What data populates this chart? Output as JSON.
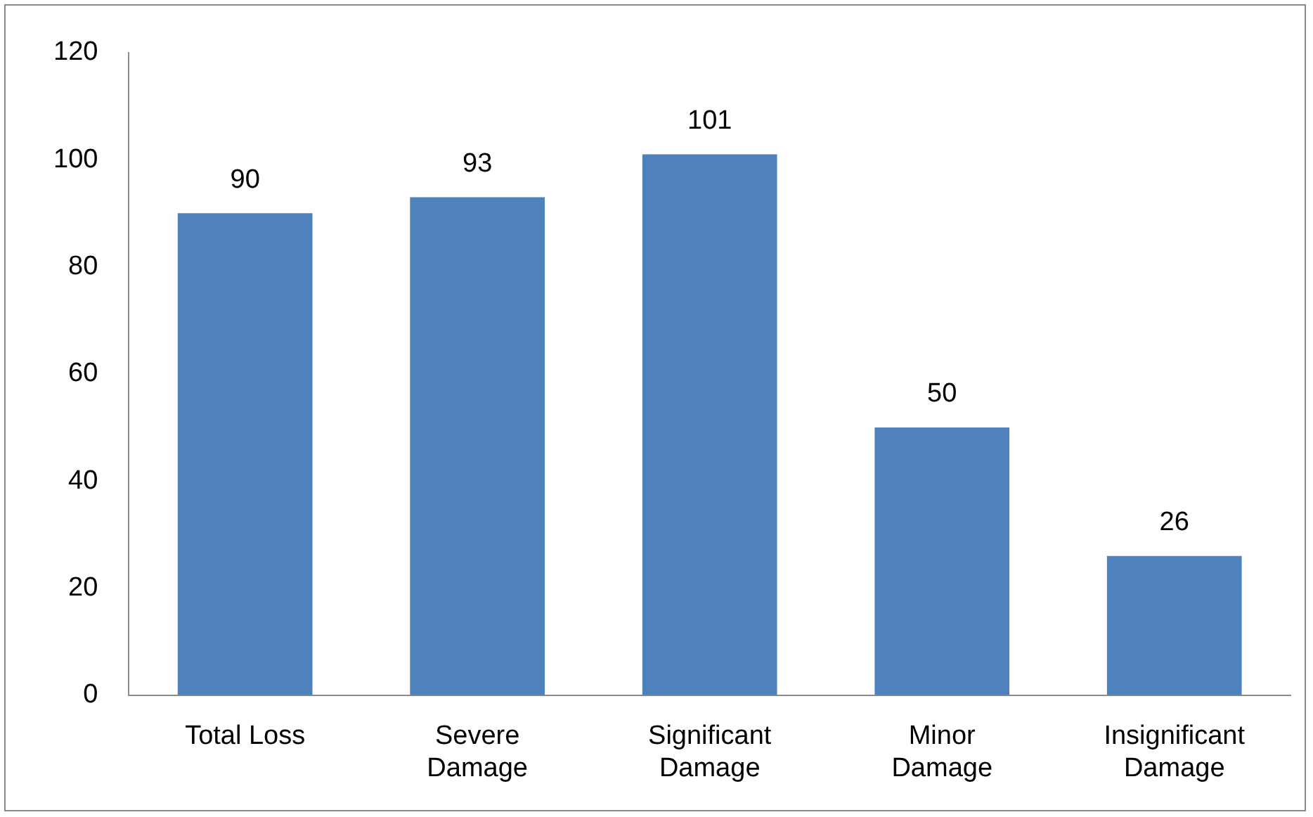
{
  "chart_data": {
    "type": "bar",
    "categories": [
      "Total Loss",
      "Severe Damage",
      "Significant Damage",
      "Minor Damage",
      "Insignificant Damage"
    ],
    "values": [
      90,
      93,
      101,
      50,
      26
    ],
    "color": "#4f81bd",
    "ylim": [
      0,
      120
    ],
    "yticks": [
      0,
      20,
      40,
      60,
      80,
      100,
      120
    ],
    "grid": false,
    "legend": false,
    "data_labels": true
  }
}
